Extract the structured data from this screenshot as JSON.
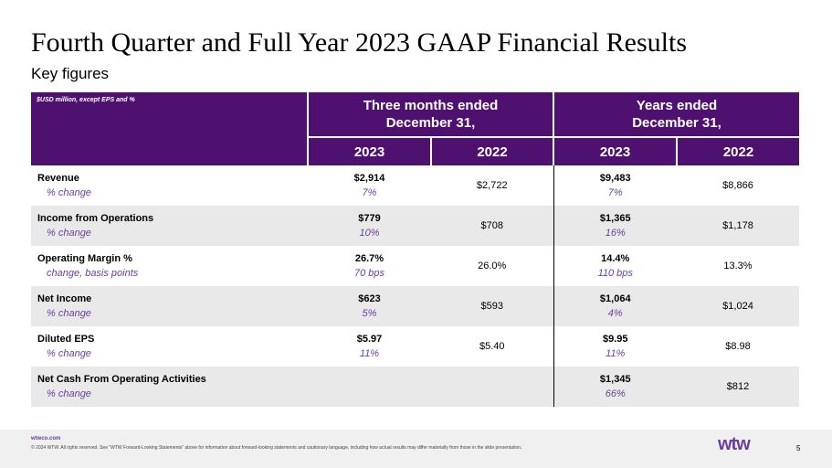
{
  "slide": {
    "title": "Fourth Quarter and Full Year 2023 GAAP Financial Results",
    "subtitle": "Key figures"
  },
  "table": {
    "unit_note": "$USD million, except EPS and %",
    "group_1": "Three months ended\nDecember 31,",
    "group_2": "Years ended\nDecember 31,",
    "years": [
      "2023",
      "2022",
      "2023",
      "2022"
    ],
    "rows": [
      {
        "label": "Revenue",
        "sublabel": "% change",
        "q_2023": "$2,914",
        "q_change": "7%",
        "q_2022": "$2,722",
        "y_2023": "$9,483",
        "y_change": "7%",
        "y_2022": "$8,866"
      },
      {
        "label": "Income from Operations",
        "sublabel": "% change",
        "q_2023": "$779",
        "q_change": "10%",
        "q_2022": "$708",
        "y_2023": "$1,365",
        "y_change": "16%",
        "y_2022": "$1,178"
      },
      {
        "label": "Operating Margin %",
        "sublabel": "change, basis points",
        "q_2023": "26.7%",
        "q_change": "70 bps",
        "q_2022": "26.0%",
        "y_2023": "14.4%",
        "y_change": "110 bps",
        "y_2022": "13.3%"
      },
      {
        "label": "Net Income",
        "sublabel": "% change",
        "q_2023": "$623",
        "q_change": "5%",
        "q_2022": "$593",
        "y_2023": "$1,064",
        "y_change": "4%",
        "y_2022": "$1,024"
      },
      {
        "label": "Diluted EPS",
        "sublabel": "% change",
        "q_2023": "$5.97",
        "q_change": "11%",
        "q_2022": "$5.40",
        "y_2023": "$9.95",
        "y_change": "11%",
        "y_2022": "$8.98"
      },
      {
        "label": "Net Cash From Operating Activities",
        "sublabel": "% change",
        "q_2023": "",
        "q_change": "",
        "q_2022": "",
        "y_2023": "$1,345",
        "y_change": "66%",
        "y_2022": "$812"
      }
    ]
  },
  "footer": {
    "url": "wtwco.com",
    "copyright": "© 2024 WTW. All rights reserved. See \"WTW Forward-Looking Statements\" above for information about forward-looking statements and cautionary language, including how actual results may differ materially from those in the slide presentation.",
    "logo": "wtw",
    "page": "5"
  },
  "colors": {
    "header_bg": "#4f1170",
    "accent": "#6a3fa0",
    "row_shade": "#e9e9ea"
  }
}
